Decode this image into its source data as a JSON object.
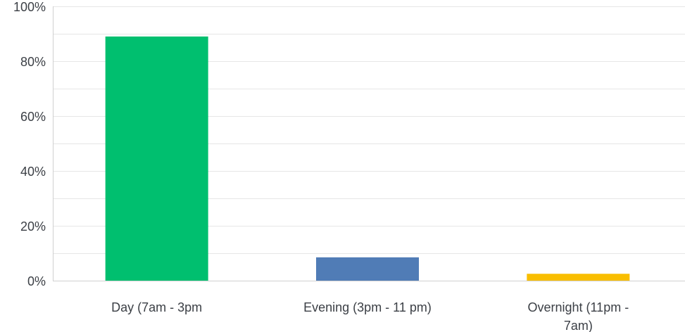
{
  "chart_data": {
    "type": "bar",
    "title": "",
    "xlabel": "",
    "ylabel": "",
    "ylim": [
      0,
      100
    ],
    "y_ticks": [
      "0%",
      "20%",
      "40%",
      "60%",
      "80%",
      "100%"
    ],
    "y_tick_values": [
      0,
      20,
      40,
      60,
      80,
      100
    ],
    "minor_grid_values": [
      10,
      30,
      50,
      70,
      90
    ],
    "grid": true,
    "categories": [
      [
        "Day (7am - 3pm"
      ],
      [
        "Evening (3pm - 11 pm)"
      ],
      [
        "Overnight (11pm -",
        "7am)"
      ]
    ],
    "values": [
      89,
      8.5,
      2.5
    ],
    "colors": [
      "#00bf6f",
      "#507cb6",
      "#f9be00"
    ]
  }
}
